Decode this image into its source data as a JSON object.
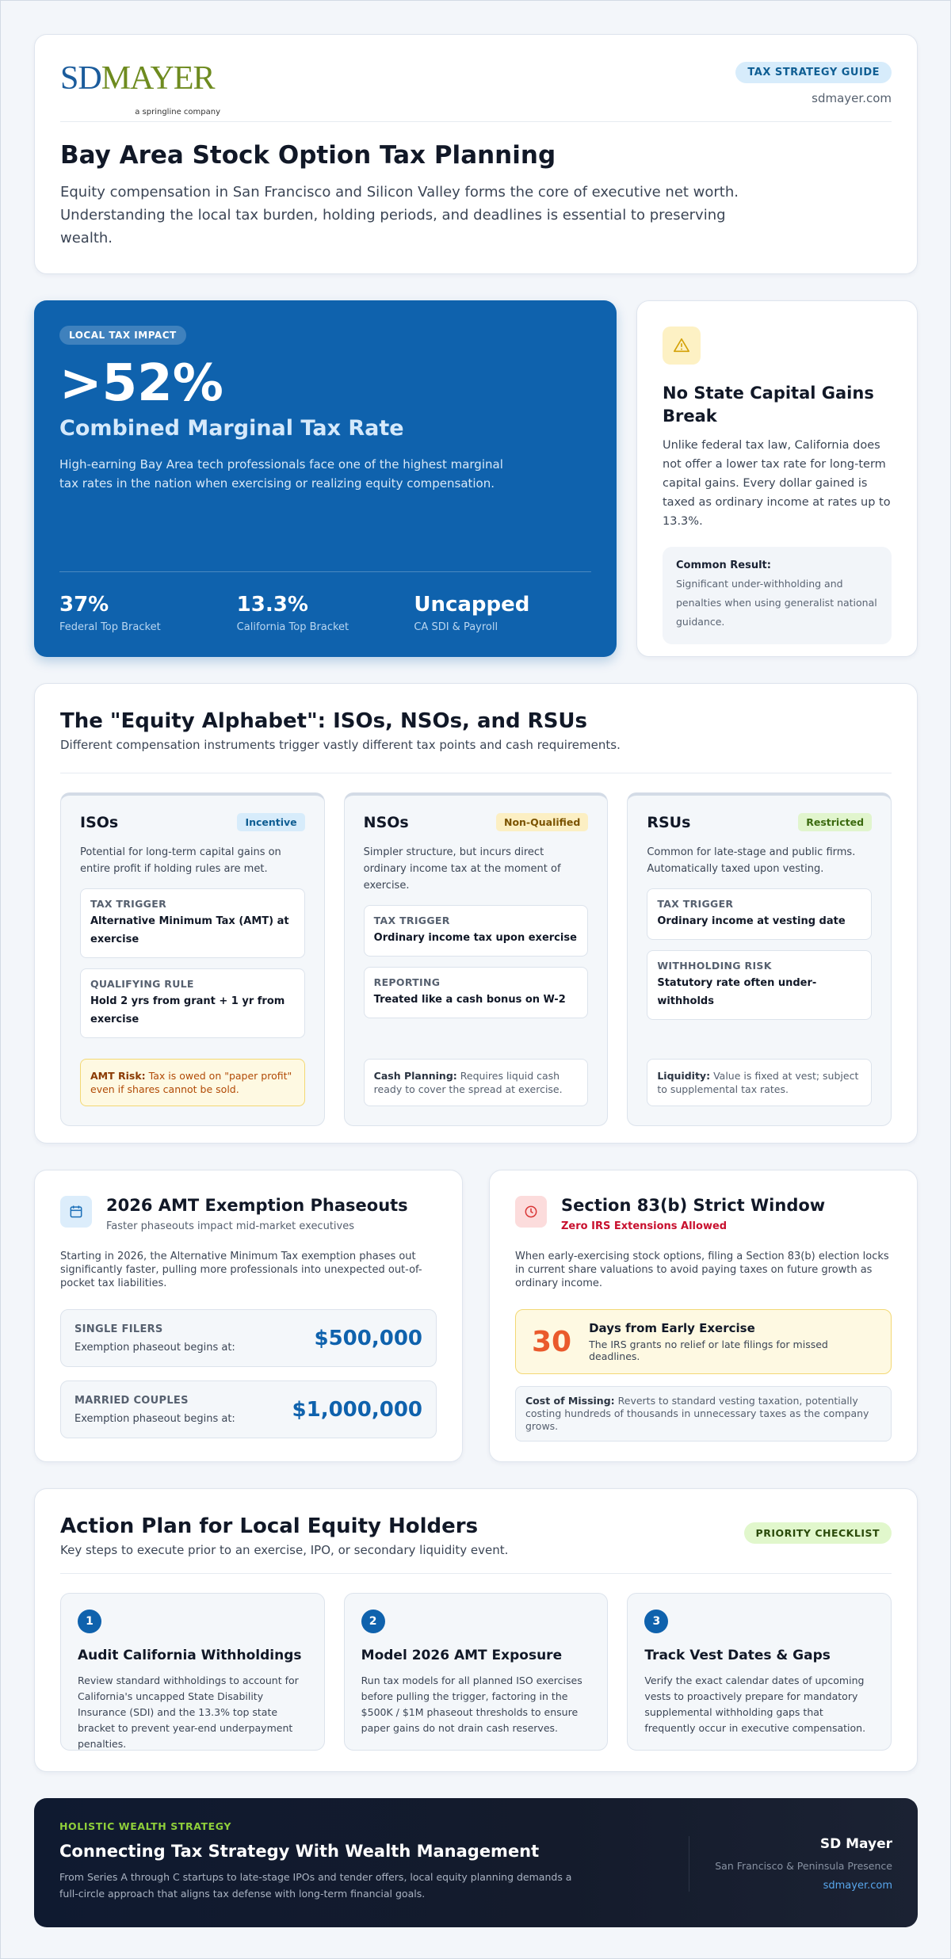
{
  "header": {
    "logo_sd": "SD",
    "logo_mayer": "MAYER",
    "logo_tagline": "a springline company",
    "badge": "TAX STRATEGY GUIDE",
    "site": "sdmayer.com",
    "title": "Bay Area Stock Option Tax Planning",
    "intro": "Equity compensation in San Francisco and Silicon Valley forms the core of executive net worth. Understanding the local tax burden, holding periods, and deadlines is essential to preserving wealth."
  },
  "hero": {
    "badge": "LOCAL TAX IMPACT",
    "big": ">52%",
    "subtitle": "Combined Marginal Tax Rate",
    "text": "High-earning Bay Area tech professionals face one of the highest marginal tax rates in the nation when exercising or realizing equity compensation.",
    "stats": [
      {
        "value": "37%",
        "label": "Federal Top Bracket"
      },
      {
        "value": "13.3%",
        "label": "California Top Bracket"
      },
      {
        "value": "Uncapped",
        "label": "CA SDI & Payroll"
      }
    ]
  },
  "no_break": {
    "title": "No State Capital Gains Break",
    "text": "Unlike federal tax law, California does not offer a lower tax rate for long-term capital gains. Every dollar gained is taxed as ordinary income at rates up to 13.3%.",
    "result_label": "Common Result:",
    "result_text": "Significant under-withholding and penalties when using generalist national guidance."
  },
  "equity": {
    "title": "The \"Equity Alphabet\": ISOs, NSOs, and RSUs",
    "subtitle": "Different compensation instruments trigger vastly different tax points and cash requirements.",
    "cards": [
      {
        "name": "ISOs",
        "tag": "Incentive",
        "text": "Potential for long-term capital gains on entire profit if holding rules are met.",
        "items": [
          {
            "label": "TAX TRIGGER",
            "value": "Alternative Minimum Tax (AMT) at exercise"
          },
          {
            "label": "QUALIFYING RULE",
            "value": "Hold 2 yrs from grant + 1 yr from exercise"
          }
        ],
        "note_label": "AMT Risk:",
        "note_text": "Tax is owed on \"paper profit\" even if shares cannot be sold."
      },
      {
        "name": "NSOs",
        "tag": "Non-Qualified",
        "text": "Simpler structure, but incurs direct ordinary income tax at the moment of exercise.",
        "items": [
          {
            "label": "TAX TRIGGER",
            "value": "Ordinary income tax upon exercise"
          },
          {
            "label": "REPORTING",
            "value": "Treated like a cash bonus on W-2"
          }
        ],
        "note_label": "Cash Planning:",
        "note_text": "Requires liquid cash ready to cover the spread at exercise."
      },
      {
        "name": "RSUs",
        "tag": "Restricted",
        "text": "Common for late-stage and public firms. Automatically taxed upon vesting.",
        "items": [
          {
            "label": "TAX TRIGGER",
            "value": "Ordinary income at vesting date"
          },
          {
            "label": "WITHHOLDING RISK",
            "value": "Statutory rate often under-withholds"
          }
        ],
        "note_label": "Liquidity:",
        "note_text": "Value is fixed at vest; subject to supplemental tax rates."
      }
    ]
  },
  "amt": {
    "title": "2026 AMT Exemption Phaseouts",
    "subtitle": "Faster phaseouts impact mid-market executives",
    "text": "Starting in 2026, the Alternative Minimum Tax exemption phases out significantly faster, pulling more professionals into unexpected out-of-pocket tax liabilities.",
    "rows": [
      {
        "label": "SINGLE FILERS",
        "text": "Exemption phaseout begins at:",
        "amount": "$500,000"
      },
      {
        "label": "MARRIED COUPLES",
        "text": "Exemption phaseout begins at:",
        "amount": "$1,000,000"
      }
    ]
  },
  "section83b": {
    "title": "Section 83(b) Strict Window",
    "alert": "Zero IRS Extensions Allowed",
    "text": "When early-exercising stock options, filing a Section 83(b) election locks in current share valuations to avoid paying taxes on future growth as ordinary income.",
    "days": "30",
    "days_title": "Days from Early Exercise",
    "days_text": "The IRS grants no relief or late filings for missed deadlines.",
    "cost_label": "Cost of Missing:",
    "cost_text": "Reverts to standard vesting taxation, potentially costing hundreds of thousands in unnecessary taxes as the company grows."
  },
  "action": {
    "title": "Action Plan for Local Equity Holders",
    "subtitle": "Key steps to execute prior to an exercise, IPO, or secondary liquidity event.",
    "badge": "PRIORITY CHECKLIST",
    "steps": [
      {
        "num": "1",
        "title": "Audit California Withholdings",
        "text": "Review standard withholdings to account for California's uncapped State Disability Insurance (SDI) and the 13.3% top state bracket to prevent year-end underpayment penalties."
      },
      {
        "num": "2",
        "title": "Model 2026 AMT Exposure",
        "text": "Run tax models for all planned ISO exercises before pulling the trigger, factoring in the $500K / $1M phaseout thresholds to ensure paper gains do not drain cash reserves."
      },
      {
        "num": "3",
        "title": "Track Vest Dates & Gaps",
        "text": "Verify the exact calendar dates of upcoming vests to proactively prepare for mandatory supplemental withholding gaps that frequently occur in executive compensation."
      }
    ]
  },
  "footer": {
    "eyebrow": "HOLISTIC WEALTH STRATEGY",
    "title": "Connecting Tax Strategy With Wealth Management",
    "text": "From Series A through C startups to late-stage IPOs and tender offers, local equity planning demands a full-circle approach that aligns tax defense with long-term financial goals.",
    "brand": "SD Mayer",
    "region": "San Francisco & Peninsula Presence",
    "site": "sdmayer.com"
  }
}
